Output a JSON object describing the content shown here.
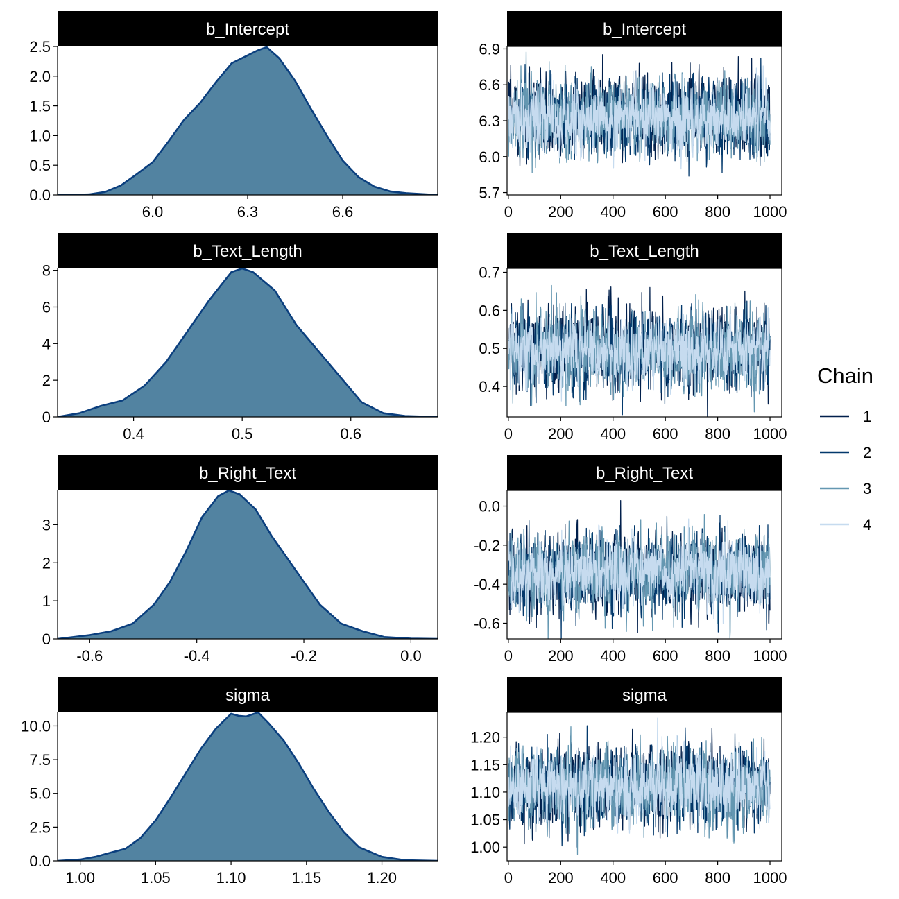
{
  "legend": {
    "title": "Chain",
    "entries": [
      "1",
      "2",
      "3",
      "4"
    ],
    "colors": [
      "#011f4b",
      "#03396c",
      "#6497b1",
      "#c6dbef"
    ],
    "placement": "right"
  },
  "colors": {
    "density_fill": "#5283a1",
    "density_line": "#0b3f7e",
    "strip_fill": "#000000",
    "strip_text": "#ffffff"
  },
  "chart_data": [
    {
      "type": "area",
      "panel": "density",
      "strip": "b_Intercept",
      "xlim": [
        5.7,
        6.9
      ],
      "ylim": [
        0,
        2.5
      ],
      "xticks": [
        6.0,
        6.3,
        6.6
      ],
      "xtick_labels": [
        "6.0",
        "6.3",
        "6.6"
      ],
      "yticks": [
        0,
        0.5,
        1.0,
        1.5,
        2.0,
        2.5
      ],
      "ytick_labels": [
        "0.0",
        "0.5",
        "1.0",
        "1.5",
        "2.0",
        "2.5"
      ],
      "x": [
        5.7,
        5.8,
        5.85,
        5.9,
        5.95,
        6.0,
        6.05,
        6.1,
        6.15,
        6.2,
        6.25,
        6.3,
        6.33,
        6.36,
        6.4,
        6.45,
        6.5,
        6.55,
        6.6,
        6.65,
        6.7,
        6.75,
        6.8,
        6.9
      ],
      "y": [
        0.0,
        0.01,
        0.05,
        0.16,
        0.35,
        0.55,
        0.9,
        1.27,
        1.55,
        1.9,
        2.22,
        2.35,
        2.43,
        2.49,
        2.3,
        1.92,
        1.45,
        1.0,
        0.58,
        0.3,
        0.14,
        0.06,
        0.03,
        0.0
      ]
    },
    {
      "type": "line",
      "panel": "trace",
      "strip": "b_Intercept",
      "xlim": [
        -5,
        1045
      ],
      "ylim": [
        5.68,
        6.92
      ],
      "xticks": [
        0,
        200,
        400,
        600,
        800,
        1000
      ],
      "xtick_labels": [
        "0",
        "200",
        "400",
        "600",
        "800",
        "1000"
      ],
      "yticks": [
        5.7,
        6.0,
        6.3,
        6.6,
        6.9
      ],
      "ytick_labels": [
        "5.7",
        "6.0",
        "6.3",
        "6.6",
        "6.9"
      ],
      "center": 6.33,
      "sd": 0.16,
      "iterations": 1000,
      "series": [
        {
          "chain": "1"
        },
        {
          "chain": "2"
        },
        {
          "chain": "3"
        },
        {
          "chain": "4"
        }
      ]
    },
    {
      "type": "area",
      "panel": "density",
      "strip": "b_Text_Length",
      "xlim": [
        0.33,
        0.68
      ],
      "ylim": [
        0,
        8.1
      ],
      "xticks": [
        0.4,
        0.5,
        0.6
      ],
      "xtick_labels": [
        "0.4",
        "0.5",
        "0.6"
      ],
      "yticks": [
        0,
        2,
        4,
        6,
        8
      ],
      "ytick_labels": [
        "0",
        "2",
        "4",
        "6",
        "8"
      ],
      "x": [
        0.33,
        0.35,
        0.37,
        0.39,
        0.41,
        0.43,
        0.45,
        0.47,
        0.49,
        0.5,
        0.51,
        0.53,
        0.55,
        0.57,
        0.59,
        0.61,
        0.63,
        0.65,
        0.68
      ],
      "y": [
        0.0,
        0.2,
        0.6,
        0.9,
        1.7,
        3.0,
        4.7,
        6.4,
        7.9,
        8.1,
        7.9,
        6.9,
        5.0,
        3.6,
        2.2,
        0.8,
        0.2,
        0.05,
        0.0
      ]
    },
    {
      "type": "line",
      "panel": "trace",
      "strip": "b_Text_Length",
      "xlim": [
        -5,
        1045
      ],
      "ylim": [
        0.32,
        0.71
      ],
      "xticks": [
        0,
        200,
        400,
        600,
        800,
        1000
      ],
      "xtick_labels": [
        "0",
        "200",
        "400",
        "600",
        "800",
        "1000"
      ],
      "yticks": [
        0.4,
        0.5,
        0.6,
        0.7
      ],
      "ytick_labels": [
        "0.4",
        "0.5",
        "0.6",
        "0.7"
      ],
      "center": 0.495,
      "sd": 0.05,
      "iterations": 1000,
      "series": [
        {
          "chain": "1"
        },
        {
          "chain": "2"
        },
        {
          "chain": "3"
        },
        {
          "chain": "4"
        }
      ]
    },
    {
      "type": "area",
      "panel": "density",
      "strip": "b_Right_Text",
      "xlim": [
        -0.66,
        0.05
      ],
      "ylim": [
        0,
        3.9
      ],
      "xticks": [
        -0.6,
        -0.4,
        -0.2,
        0.0
      ],
      "xtick_labels": [
        "-0.6",
        "-0.4",
        "-0.2",
        "0.0"
      ],
      "yticks": [
        0,
        1,
        2,
        3
      ],
      "ytick_labels": [
        "0",
        "1",
        "2",
        "3"
      ],
      "x": [
        -0.66,
        -0.6,
        -0.56,
        -0.52,
        -0.48,
        -0.45,
        -0.42,
        -0.39,
        -0.36,
        -0.34,
        -0.32,
        -0.29,
        -0.26,
        -0.23,
        -0.2,
        -0.17,
        -0.13,
        -0.09,
        -0.05,
        0.0,
        0.05
      ],
      "y": [
        0.0,
        0.1,
        0.2,
        0.4,
        0.9,
        1.5,
        2.3,
        3.2,
        3.75,
        3.9,
        3.8,
        3.4,
        2.7,
        2.1,
        1.5,
        0.9,
        0.4,
        0.2,
        0.05,
        0.01,
        0.0
      ]
    },
    {
      "type": "line",
      "panel": "trace",
      "strip": "b_Right_Text",
      "xlim": [
        -5,
        1045
      ],
      "ylim": [
        -0.68,
        0.08
      ],
      "xticks": [
        0,
        200,
        400,
        600,
        800,
        1000
      ],
      "xtick_labels": [
        "0",
        "200",
        "400",
        "600",
        "800",
        "1000"
      ],
      "yticks": [
        -0.6,
        -0.4,
        -0.2,
        0.0
      ],
      "ytick_labels": [
        "-0.6",
        "-0.4",
        "-0.2",
        "0.0"
      ],
      "center": -0.34,
      "sd": 0.1,
      "iterations": 1000,
      "series": [
        {
          "chain": "1"
        },
        {
          "chain": "2"
        },
        {
          "chain": "3"
        },
        {
          "chain": "4"
        }
      ]
    },
    {
      "type": "area",
      "panel": "density",
      "strip": "sigma",
      "xlim": [
        0.985,
        1.237
      ],
      "ylim": [
        0,
        11.0
      ],
      "xticks": [
        1.0,
        1.05,
        1.1,
        1.15,
        1.2
      ],
      "xtick_labels": [
        "1.00",
        "1.05",
        "1.10",
        "1.15",
        "1.20"
      ],
      "yticks": [
        0,
        2.5,
        5.0,
        7.5,
        10.0
      ],
      "ytick_labels": [
        "0.0",
        "2.5",
        "5.0",
        "7.5",
        "10.0"
      ],
      "x": [
        0.985,
        1.0,
        1.01,
        1.02,
        1.03,
        1.04,
        1.05,
        1.06,
        1.07,
        1.08,
        1.09,
        1.1,
        1.105,
        1.11,
        1.118,
        1.125,
        1.135,
        1.145,
        1.155,
        1.165,
        1.175,
        1.185,
        1.2,
        1.215,
        1.237
      ],
      "y": [
        0.0,
        0.1,
        0.3,
        0.6,
        0.9,
        1.7,
        3.0,
        4.7,
        6.5,
        8.3,
        9.8,
        10.9,
        10.75,
        10.7,
        11.0,
        10.2,
        8.9,
        7.2,
        5.3,
        3.6,
        2.1,
        1.0,
        0.3,
        0.05,
        0.0
      ]
    },
    {
      "type": "line",
      "panel": "trace",
      "strip": "sigma",
      "xlim": [
        -5,
        1045
      ],
      "ylim": [
        0.975,
        1.245
      ],
      "xticks": [
        0,
        200,
        400,
        600,
        800,
        1000
      ],
      "xtick_labels": [
        "0",
        "200",
        "400",
        "600",
        "800",
        "1000"
      ],
      "yticks": [
        1.0,
        1.05,
        1.1,
        1.15,
        1.2
      ],
      "ytick_labels": [
        "1.00",
        "1.05",
        "1.10",
        "1.15",
        "1.20"
      ],
      "center": 1.11,
      "sd": 0.035,
      "iterations": 1000,
      "series": [
        {
          "chain": "1"
        },
        {
          "chain": "2"
        },
        {
          "chain": "3"
        },
        {
          "chain": "4"
        }
      ]
    }
  ]
}
